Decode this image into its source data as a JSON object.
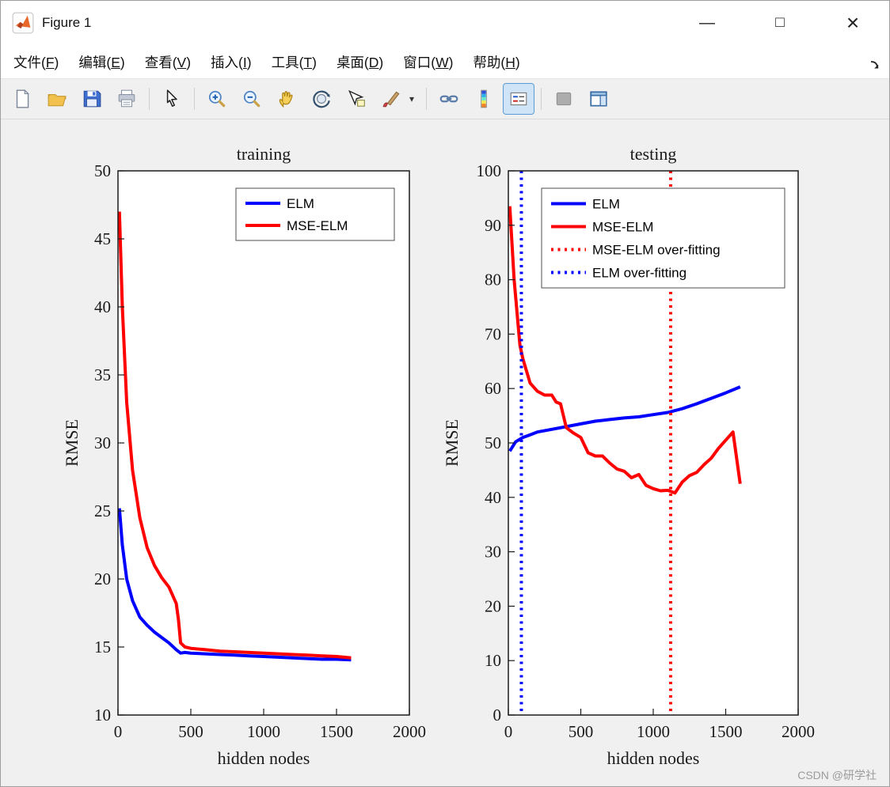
{
  "window": {
    "title": "Figure 1",
    "controls": [
      {
        "id": "minimize",
        "glyph": "—"
      },
      {
        "id": "maximize",
        "glyph": "□"
      },
      {
        "id": "close",
        "glyph": "×"
      }
    ]
  },
  "menu": {
    "items": [
      {
        "id": "file",
        "label": "文件(F)"
      },
      {
        "id": "edit",
        "label": "编辑(E)"
      },
      {
        "id": "view",
        "label": "查看(V)"
      },
      {
        "id": "insert",
        "label": "插入(I)"
      },
      {
        "id": "tools",
        "label": "工具(T)"
      },
      {
        "id": "desktop",
        "label": "桌面(D)"
      },
      {
        "id": "window",
        "label": "窗口(W)"
      },
      {
        "id": "help",
        "label": "帮助(H)"
      }
    ]
  },
  "toolbar": {
    "items": [
      {
        "id": "new-file"
      },
      {
        "id": "open-folder"
      },
      {
        "id": "save"
      },
      {
        "id": "print"
      },
      {
        "type": "separator"
      },
      {
        "id": "edit-arrow"
      },
      {
        "type": "separator"
      },
      {
        "id": "zoom-in"
      },
      {
        "id": "zoom-out"
      },
      {
        "id": "pan-hand"
      },
      {
        "id": "rotate-3d"
      },
      {
        "id": "data-cursor"
      },
      {
        "id": "brush"
      },
      {
        "id": "brush-dropdown"
      },
      {
        "type": "separator"
      },
      {
        "id": "link-plots"
      },
      {
        "id": "insert-colorbar"
      },
      {
        "id": "insert-legend",
        "active": true
      },
      {
        "type": "separator"
      },
      {
        "id": "hide-plot-tools"
      },
      {
        "id": "dock-figure"
      }
    ]
  },
  "watermark": "CSDN @研学社",
  "chart_data": [
    {
      "type": "line",
      "title": "training",
      "xlabel": "hidden nodes",
      "ylabel": "RMSE",
      "xlim": [
        0,
        2000
      ],
      "ylim": [
        10,
        50
      ],
      "xticks": [
        0,
        500,
        1000,
        1500,
        2000
      ],
      "yticks": [
        10,
        15,
        20,
        25,
        30,
        35,
        40,
        45,
        50
      ],
      "grid": false,
      "legend_position": "northeast",
      "series": [
        {
          "name": "ELM",
          "color": "#0000ff",
          "style": "solid",
          "x": [
            10,
            30,
            60,
            100,
            150,
            200,
            250,
            300,
            350,
            400,
            430,
            460,
            500,
            600,
            700,
            800,
            900,
            1000,
            1100,
            1200,
            1300,
            1400,
            1500,
            1600
          ],
          "y": [
            25.2,
            22.5,
            20.0,
            18.4,
            17.2,
            16.6,
            16.1,
            15.7,
            15.3,
            14.8,
            14.55,
            14.6,
            14.55,
            14.5,
            14.45,
            14.4,
            14.35,
            14.3,
            14.25,
            14.2,
            14.15,
            14.1,
            14.1,
            14.05
          ]
        },
        {
          "name": "MSE-ELM",
          "color": "#ff0000",
          "style": "solid",
          "x": [
            10,
            30,
            60,
            100,
            150,
            200,
            250,
            300,
            350,
            400,
            415,
            430,
            460,
            500,
            600,
            700,
            800,
            900,
            1000,
            1100,
            1200,
            1300,
            1400,
            1500,
            1600
          ],
          "y": [
            47.0,
            40.0,
            33.0,
            28.0,
            24.5,
            22.3,
            21.0,
            20.1,
            19.4,
            18.2,
            17.0,
            15.3,
            15.0,
            14.9,
            14.8,
            14.7,
            14.65,
            14.6,
            14.55,
            14.5,
            14.45,
            14.4,
            14.35,
            14.3,
            14.2
          ]
        }
      ]
    },
    {
      "type": "line",
      "title": "testing",
      "xlabel": "hidden nodes",
      "ylabel": "RMSE",
      "xlim": [
        0,
        2000
      ],
      "ylim": [
        0,
        100
      ],
      "xticks": [
        0,
        500,
        1000,
        1500,
        2000
      ],
      "yticks": [
        0,
        10,
        20,
        30,
        40,
        50,
        60,
        70,
        80,
        90,
        100
      ],
      "grid": false,
      "legend_position": "north",
      "series": [
        {
          "name": "ELM",
          "color": "#0000ff",
          "style": "solid",
          "x": [
            10,
            50,
            100,
            150,
            200,
            300,
            400,
            500,
            600,
            700,
            800,
            900,
            1000,
            1100,
            1200,
            1300,
            1400,
            1500,
            1600
          ],
          "y": [
            48.5,
            50.2,
            51.0,
            51.5,
            52.0,
            52.5,
            53.0,
            53.5,
            54.0,
            54.3,
            54.6,
            54.8,
            55.2,
            55.6,
            56.3,
            57.2,
            58.2,
            59.2,
            60.3
          ]
        },
        {
          "name": "MSE-ELM",
          "color": "#ff0000",
          "style": "solid",
          "x": [
            10,
            40,
            80,
            100,
            150,
            200,
            250,
            300,
            330,
            360,
            400,
            450,
            500,
            550,
            600,
            650,
            700,
            750,
            800,
            850,
            900,
            950,
            1000,
            1050,
            1100,
            1150,
            1200,
            1250,
            1300,
            1350,
            1400,
            1450,
            1500,
            1550,
            1600
          ],
          "y": [
            93.5,
            80.0,
            68.0,
            65.5,
            61.0,
            59.5,
            58.8,
            58.8,
            57.5,
            57.2,
            52.8,
            51.8,
            51.0,
            48.2,
            47.6,
            47.6,
            46.3,
            45.2,
            44.8,
            43.6,
            44.2,
            42.2,
            41.6,
            41.2,
            41.3,
            40.8,
            42.8,
            44.0,
            44.6,
            46.0,
            47.2,
            49.0,
            50.5,
            52.0,
            42.5
          ]
        },
        {
          "name": "MSE-ELM over-fitting",
          "color": "#ff0000",
          "style": "dotted",
          "vline": 1120
        },
        {
          "name": "ELM over-fitting",
          "color": "#0000ff",
          "style": "dotted",
          "vline": 90
        }
      ]
    }
  ]
}
